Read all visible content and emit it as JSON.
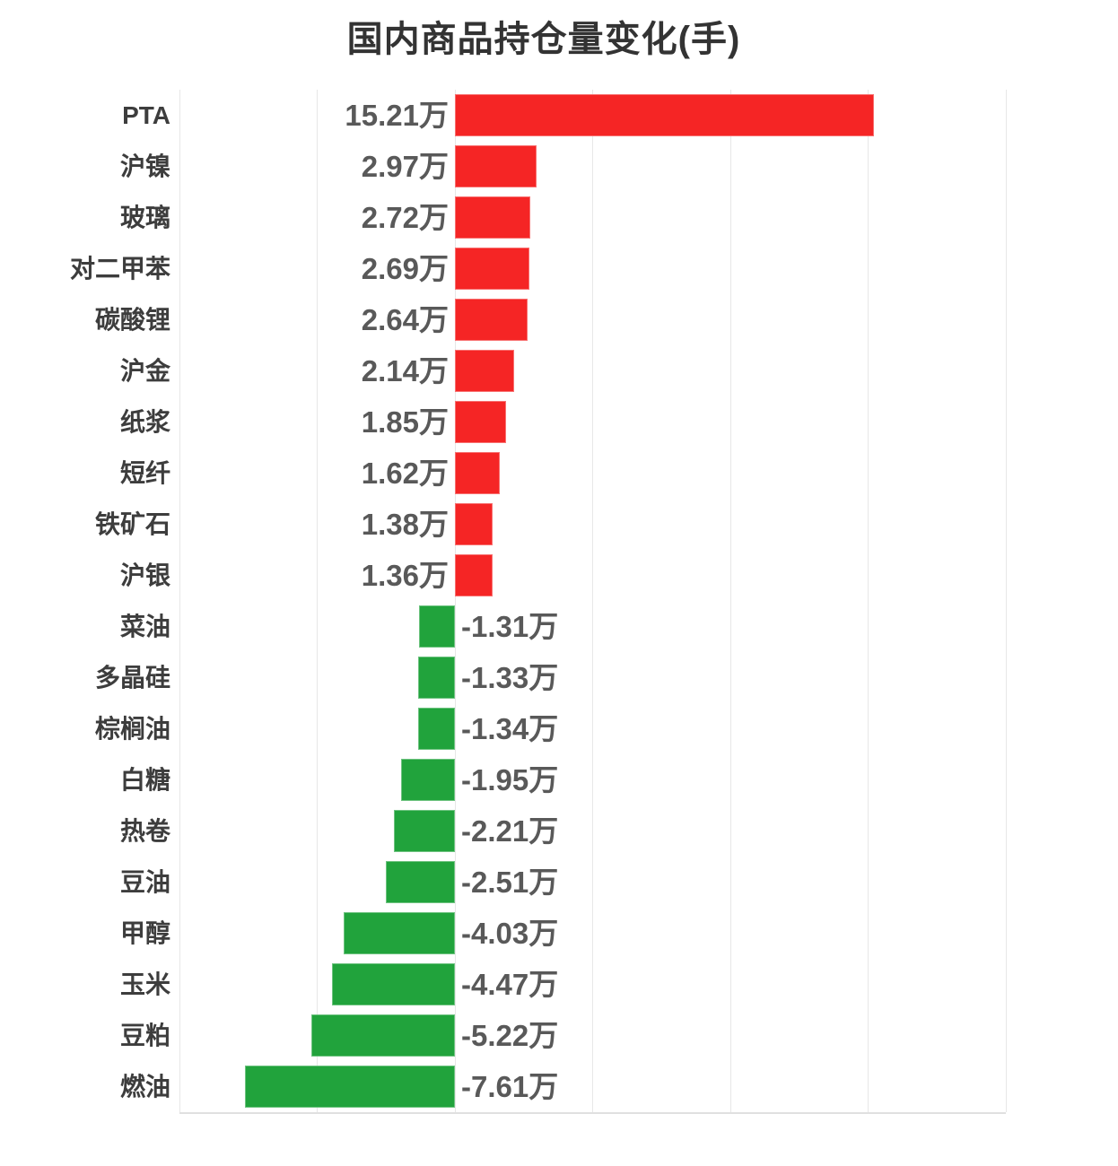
{
  "title": "国内商品持仓量变化(手)",
  "colors": {
    "positive_bar": "#f52525",
    "negative_bar": "#21a33c",
    "gridline": "#e7e7e7",
    "axis_line": "#e0e0e0",
    "title_text": "#333333",
    "category_text": "#3d3d3d",
    "value_text": "#595959",
    "background": "#ffffff"
  },
  "chart_data": {
    "type": "bar",
    "orientation": "horizontal",
    "title": "国内商品持仓量变化(手)",
    "unit": "万手",
    "categories": [
      "PTA",
      "沪镍",
      "玻璃",
      "对二甲苯",
      "碳酸锂",
      "沪金",
      "纸浆",
      "短纤",
      "铁矿石",
      "沪银",
      "菜油",
      "多晶硅",
      "棕榈油",
      "白糖",
      "热卷",
      "豆油",
      "甲醇",
      "玉米",
      "豆粕",
      "燃油"
    ],
    "values": [
      15.21,
      2.97,
      2.72,
      2.69,
      2.64,
      2.14,
      1.85,
      1.62,
      1.38,
      1.36,
      -1.31,
      -1.33,
      -1.34,
      -1.95,
      -2.21,
      -2.51,
      -4.03,
      -4.47,
      -5.22,
      -7.61
    ],
    "value_labels": [
      "15.21万",
      "2.97万",
      "2.72万",
      "2.69万",
      "2.64万",
      "2.14万",
      "1.85万",
      "1.62万",
      "1.38万",
      "1.36万",
      "-1.31万",
      "-1.33万",
      "-1.34万",
      "-1.95万",
      "-2.21万",
      "-2.51万",
      "-4.03万",
      "-4.47万",
      "-5.22万",
      "-7.61万"
    ],
    "xlim": [
      -10,
      20
    ],
    "grid_step": 5,
    "grid": "on",
    "tick_labels": "none",
    "legend": "none",
    "value_label_position": "at-baseline-opposite-side"
  }
}
